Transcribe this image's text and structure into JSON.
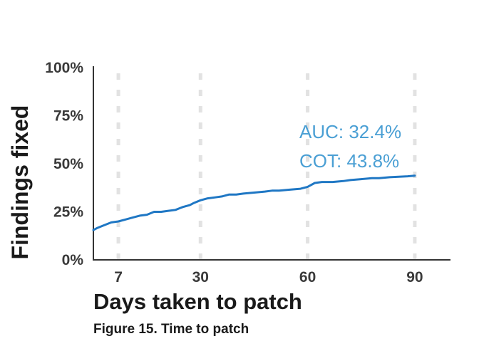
{
  "chart_data": {
    "type": "line",
    "xlabel": "Days taken to patch",
    "ylabel": "Findings fixed",
    "xlim": [
      0,
      100
    ],
    "ylim": [
      0,
      100
    ],
    "x_ticks": [
      7,
      30,
      60,
      90
    ],
    "x_tick_labels": [
      "7",
      "30",
      "60",
      "90"
    ],
    "y_ticks": [
      0,
      25,
      50,
      75,
      100
    ],
    "y_tick_labels": [
      "0%",
      "25%",
      "50%",
      "75%",
      "100%"
    ],
    "vertical_gridlines": "dashed at 7, 30, 60, 90",
    "line_color": "#1f77c4",
    "annotations": [
      "AUC: 32.4%",
      "COT: 43.8%"
    ],
    "annotation_color": "#4a9fd4",
    "series": [
      {
        "x": [
          0,
          1,
          3,
          5,
          7,
          9,
          11,
          13,
          15,
          17,
          19,
          21,
          23,
          25,
          27,
          28,
          30,
          32,
          34,
          36,
          38,
          40,
          42,
          45,
          48,
          50,
          52,
          55,
          58,
          60,
          62,
          64,
          67,
          70,
          72,
          75,
          78,
          80,
          83,
          86,
          88,
          90
        ],
        "y": [
          15.5,
          16.5,
          18,
          19.5,
          20,
          21,
          22,
          23,
          23.5,
          25,
          25,
          25.5,
          26,
          27.5,
          28.5,
          29.5,
          31,
          32,
          32.5,
          33,
          34,
          34,
          34.5,
          35,
          35.5,
          36,
          36,
          36.5,
          37,
          38,
          40,
          40.5,
          40.5,
          41,
          41.5,
          42,
          42.5,
          42.5,
          43,
          43.3,
          43.5,
          43.8
        ]
      }
    ]
  },
  "caption": "Figure 15. Time to patch"
}
